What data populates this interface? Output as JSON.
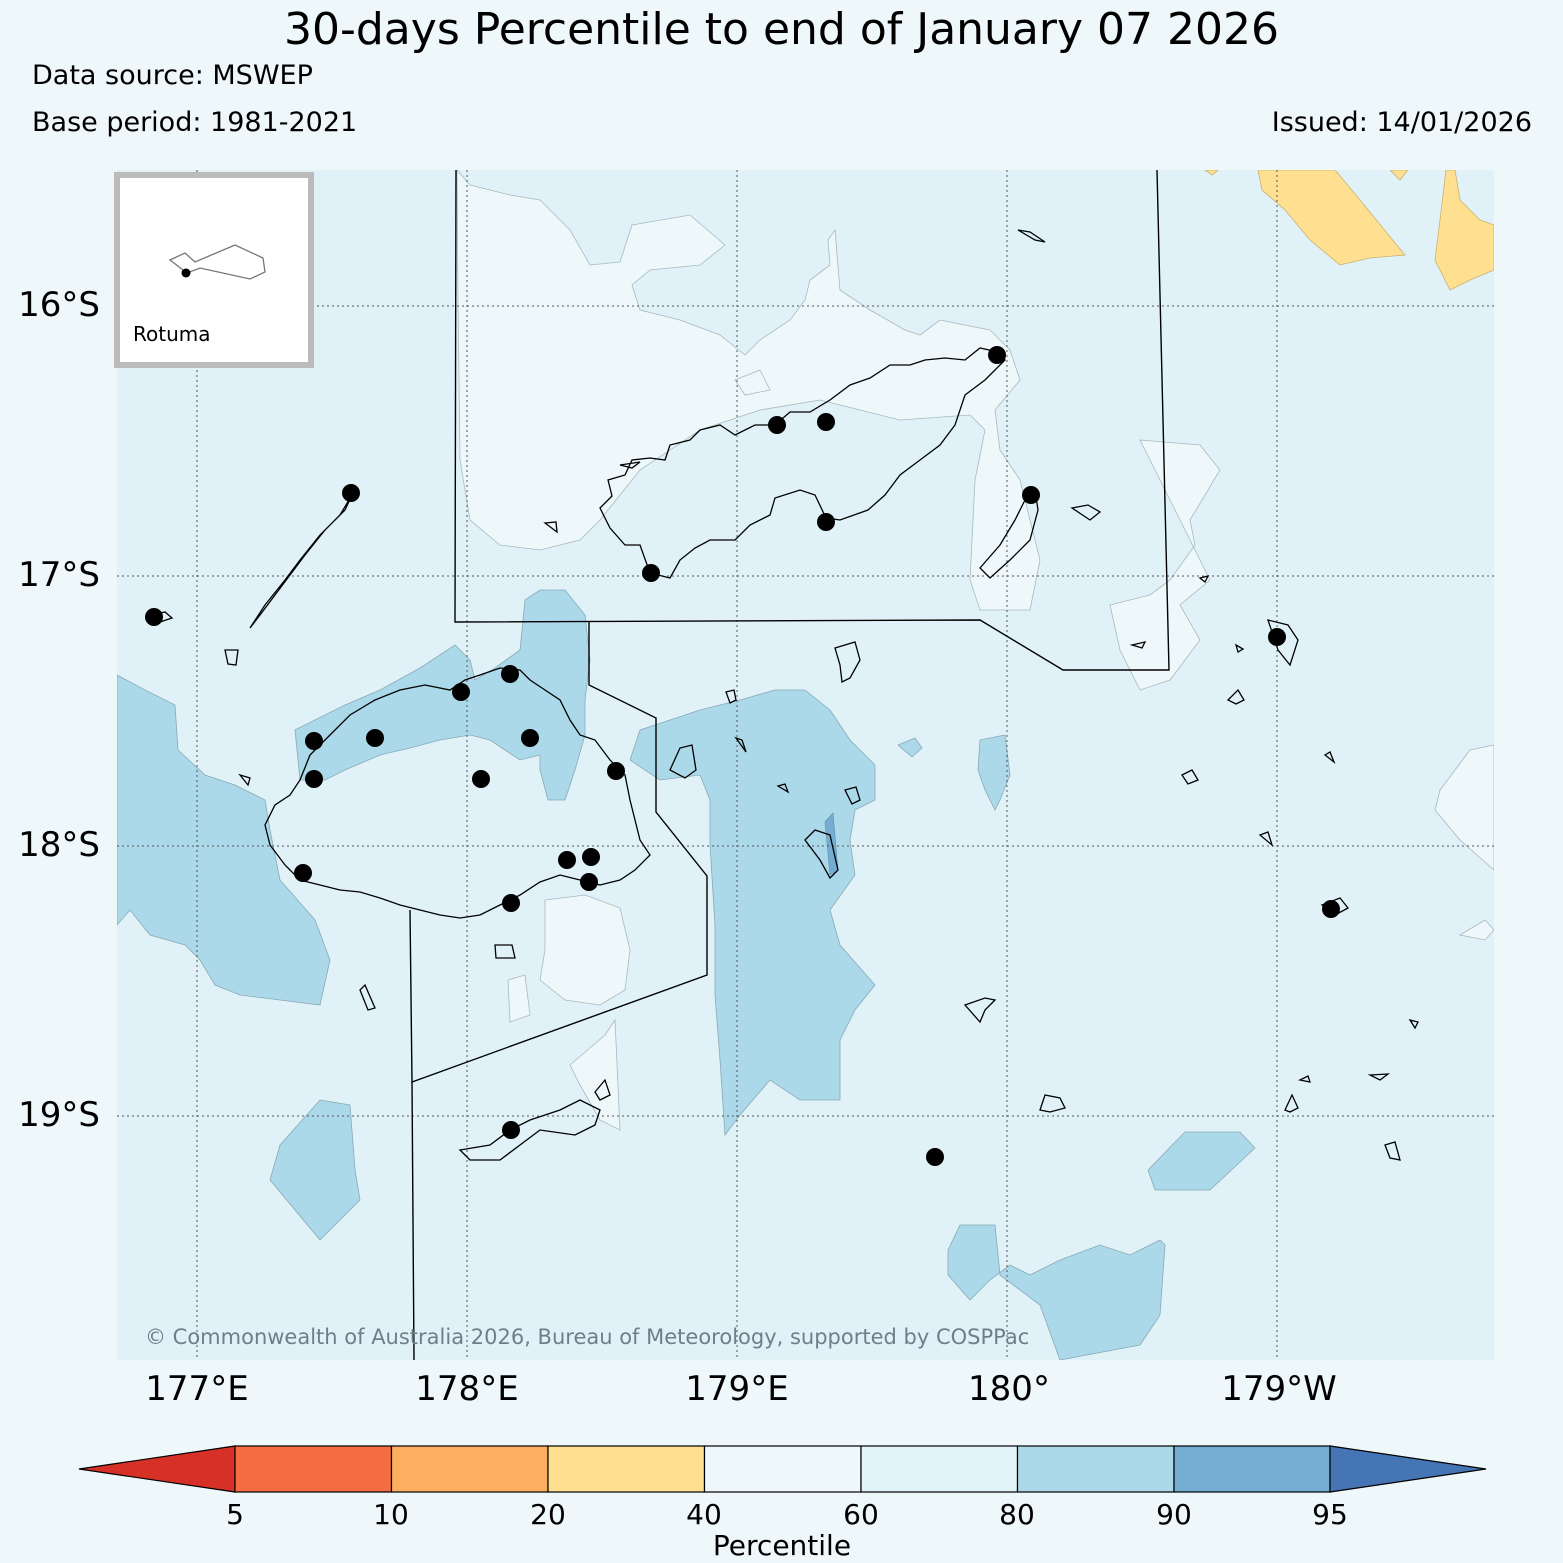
{
  "header": {
    "title": "30-days Percentile to end of January 07 2026",
    "data_source": "Data source: MSWEP",
    "base_period": "Base period: 1981-2021",
    "issued": "Issued: 14/01/2026"
  },
  "map": {
    "lat_labels": [
      "16°S",
      "17°S",
      "18°S",
      "19°S"
    ],
    "lon_labels": [
      "177°E",
      "178°E",
      "179°E",
      "180°",
      "179°W"
    ],
    "inset_label": "Rotuma",
    "copyright": "© Commonwealth of Australia 2026, Bureau of Meteorology, supported by COSPPac",
    "background_color": "#e0f2f8"
  },
  "colorbar": {
    "label": "Percentile",
    "ticks": [
      "5",
      "10",
      "20",
      "40",
      "60",
      "80",
      "90",
      "95"
    ],
    "colors": [
      "#d73027",
      "#f46d43",
      "#fdae61",
      "#fee090",
      "#eef8fa",
      "#e0f3f8",
      "#abd9e9",
      "#74add1",
      "#4575b4"
    ]
  }
}
